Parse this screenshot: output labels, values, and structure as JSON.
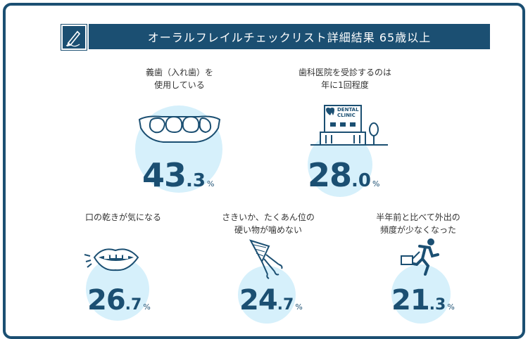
{
  "title": "オーラルフレイルチェックリスト詳細結果  65歳以上",
  "header_icon": "pen-icon",
  "accent_color": "#1b4f72",
  "circle_color": "#d6f0fb",
  "items": [
    {
      "label": "義歯（入れ歯）を\n使用している",
      "int": "43",
      "dec": ".3",
      "unit": "%",
      "icon": "denture-icon"
    },
    {
      "label": "歯科医院を受診するのは\n年に1回程度",
      "int": "28",
      "dec": ".0",
      "unit": "%",
      "icon": "dental-clinic-icon",
      "sign": "DENTAL\nCLINIC"
    },
    {
      "label": "口の乾きが気になる",
      "int": "26",
      "dec": ".7",
      "unit": "%",
      "icon": "mouth-icon"
    },
    {
      "label": "さきいか、たくあん位の\n硬い物が噛めない",
      "int": "24",
      "dec": ".7",
      "unit": "%",
      "icon": "squid-icon"
    },
    {
      "label": "半年前と比べて外出の\n頻度が少なくなった",
      "int": "21",
      "dec": ".3",
      "unit": "%",
      "icon": "running-person-icon"
    }
  ]
}
